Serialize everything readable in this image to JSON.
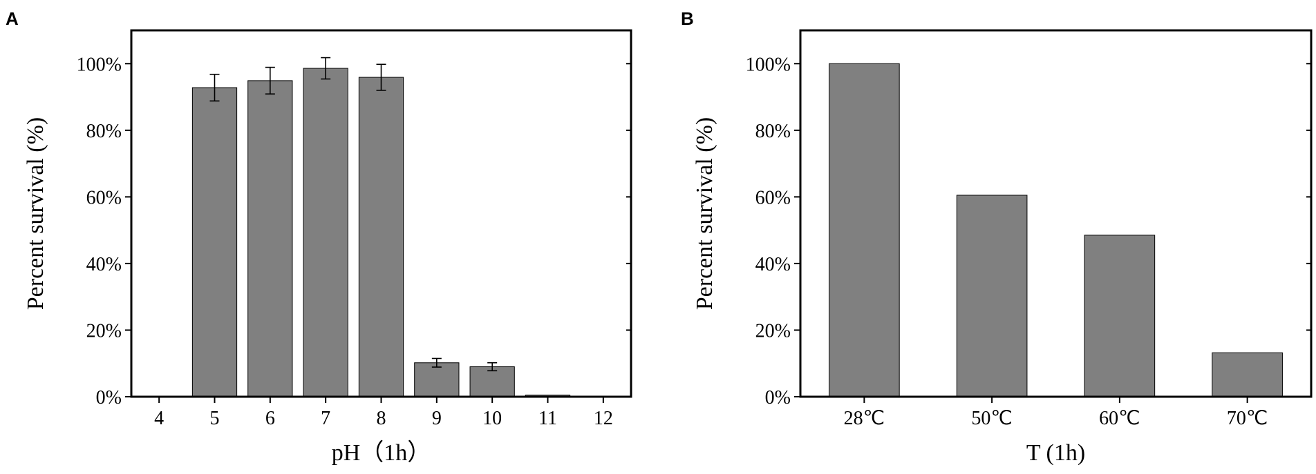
{
  "chart_data": [
    {
      "panel": "A",
      "type": "bar",
      "title": "",
      "xlabel": "pH（1h）",
      "ylabel": "Percent survival (%)",
      "categories": [
        "4",
        "5",
        "6",
        "7",
        "8",
        "9",
        "10",
        "11",
        "12"
      ],
      "values": [
        0,
        92.8,
        94.9,
        98.6,
        95.9,
        10.2,
        9.0,
        0.5,
        0
      ],
      "errors": [
        0,
        4.0,
        4.0,
        3.2,
        3.9,
        1.3,
        1.2,
        0,
        0
      ],
      "ylim": [
        0,
        110
      ],
      "yticks": [
        0,
        20,
        40,
        60,
        80,
        100
      ],
      "ytick_labels": [
        "0%",
        "20%",
        "40%",
        "60%",
        "80%",
        "100%"
      ],
      "bar_color": "#808080",
      "grid": false
    },
    {
      "panel": "B",
      "type": "bar",
      "title": "",
      "xlabel": "T (1h)",
      "ylabel": "Percent survival (%)",
      "categories": [
        "28℃",
        "50℃",
        "60℃",
        "70℃"
      ],
      "values": [
        100,
        60.5,
        48.5,
        13.2
      ],
      "ylim": [
        0,
        110
      ],
      "yticks": [
        0,
        20,
        40,
        60,
        80,
        100
      ],
      "ytick_labels": [
        "0%",
        "20%",
        "40%",
        "60%",
        "80%",
        "100%"
      ],
      "bar_color": "#808080",
      "grid": false
    }
  ]
}
